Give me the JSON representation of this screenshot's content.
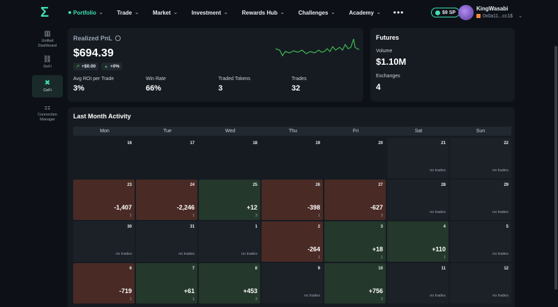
{
  "nav": {
    "logo": "Σ",
    "items": [
      {
        "label": "Portfolio"
      },
      {
        "label": "Trade"
      },
      {
        "label": "Market"
      },
      {
        "label": "Investment"
      },
      {
        "label": "Rewards Hub"
      },
      {
        "label": "Challenges"
      },
      {
        "label": "Academy"
      }
    ],
    "more": "•••",
    "sp_badge": "$9 SP",
    "user_name": "KingWasabi",
    "user_addr": "0x0a11...cc1$"
  },
  "sidebar": {
    "items": [
      {
        "label": "Unified Dashboard",
        "icon": "▥"
      },
      {
        "label": "DeFi",
        "icon": "⛓"
      },
      {
        "label": "CeFi",
        "icon": "✖"
      },
      {
        "label": "Connection Manager",
        "icon": "⚏"
      }
    ]
  },
  "pnl": {
    "title": "Realized PnL",
    "value": "$694.39",
    "delta_abs": "+$0.00",
    "delta_pct": "+0%",
    "stats": [
      {
        "label": "Avg ROI per Trade",
        "value": "3%"
      },
      {
        "label": "Win Rate",
        "value": "66%"
      },
      {
        "label": "Traded Tokens",
        "value": "3"
      },
      {
        "label": "Trades",
        "value": "32"
      }
    ],
    "sparkline_color": "#3fb950"
  },
  "futures": {
    "title": "Futures",
    "volume_label": "Volume",
    "volume_value": "$1.10M",
    "exchanges_label": "Exchanges",
    "exchanges_value": "4"
  },
  "activity": {
    "title": "Last Month Activity",
    "weekdays": [
      "Mon",
      "Tue",
      "Wed",
      "Thu",
      "Fri",
      "Sat",
      "Sun"
    ],
    "no_trades_label": "no trades",
    "weeks": [
      [
        {
          "day": "16",
          "kind": "blank"
        },
        {
          "day": "17",
          "kind": "blank"
        },
        {
          "day": "18",
          "kind": "blank"
        },
        {
          "day": "19",
          "kind": "blank"
        },
        {
          "day": "20",
          "kind": "blank"
        },
        {
          "day": "21",
          "kind": "empty"
        },
        {
          "day": "22",
          "kind": "empty"
        }
      ],
      [
        {
          "day": "23",
          "kind": "loss",
          "pnl": "-1,407",
          "count": "1"
        },
        {
          "day": "24",
          "kind": "loss",
          "pnl": "-2,246",
          "count": "1"
        },
        {
          "day": "25",
          "kind": "gain",
          "pnl": "+12",
          "count": "3"
        },
        {
          "day": "26",
          "kind": "loss",
          "pnl": "-398",
          "count": "1"
        },
        {
          "day": "27",
          "kind": "loss",
          "pnl": "-627",
          "count": "2"
        },
        {
          "day": "28",
          "kind": "empty"
        },
        {
          "day": "29",
          "kind": "empty"
        }
      ],
      [
        {
          "day": "30",
          "kind": "empty"
        },
        {
          "day": "31",
          "kind": "empty"
        },
        {
          "day": "1",
          "kind": "empty"
        },
        {
          "day": "2",
          "kind": "loss",
          "pnl": "-264",
          "count": "1"
        },
        {
          "day": "3",
          "kind": "gain",
          "pnl": "+18",
          "count": "1"
        },
        {
          "day": "4",
          "kind": "gain",
          "pnl": "+110",
          "count": "1"
        },
        {
          "day": "5",
          "kind": "empty"
        }
      ],
      [
        {
          "day": "6",
          "kind": "loss",
          "pnl": "-719",
          "count": "1"
        },
        {
          "day": "7",
          "kind": "gain",
          "pnl": "+61",
          "count": "1"
        },
        {
          "day": "8",
          "kind": "gain",
          "pnl": "+453",
          "count": "3"
        },
        {
          "day": "9",
          "kind": "empty"
        },
        {
          "day": "10",
          "kind": "gain",
          "pnl": "+756",
          "count": "2"
        },
        {
          "day": "11",
          "kind": "empty"
        },
        {
          "day": "12",
          "kind": "empty"
        }
      ]
    ]
  }
}
